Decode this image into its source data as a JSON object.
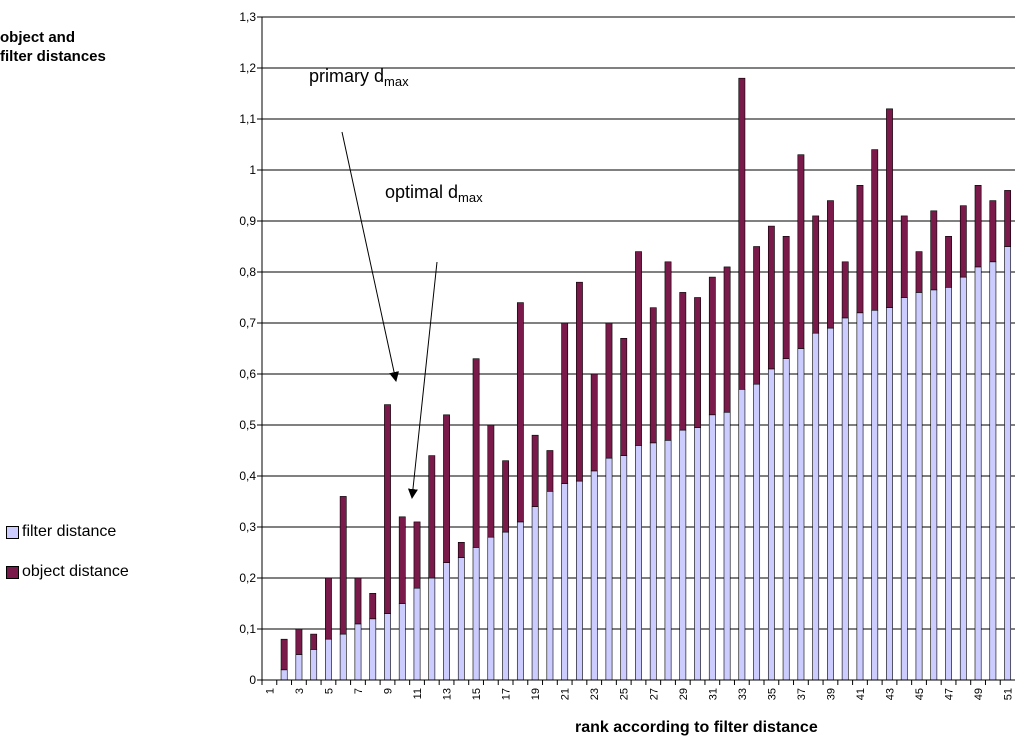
{
  "chart_data": {
    "type": "bar",
    "stacked": true,
    "ylabel_line1": "object and",
    "ylabel_line2": "filter distances",
    "xlabel": "rank according to filter distance",
    "ylim": [
      0,
      1.3
    ],
    "y_ticks": [
      "0",
      "0,1",
      "0,2",
      "0,3",
      "0,4",
      "0,5",
      "0,6",
      "0,7",
      "0,8",
      "0,9",
      "1",
      "1,1",
      "1,2",
      "1,3"
    ],
    "grid": "horizontal",
    "legend_position": "left",
    "x_tick_labels": [
      "1",
      "3",
      "5",
      "7",
      "9",
      "11",
      "13",
      "15",
      "17",
      "19",
      "21",
      "23",
      "25",
      "27",
      "29",
      "31",
      "33",
      "35",
      "37",
      "39",
      "41",
      "43",
      "45",
      "47",
      "49",
      "51"
    ],
    "categories": [
      1,
      2,
      3,
      4,
      5,
      6,
      7,
      8,
      9,
      10,
      11,
      12,
      13,
      14,
      15,
      16,
      17,
      18,
      19,
      20,
      21,
      22,
      23,
      24,
      25,
      26,
      27,
      28,
      29,
      30,
      31,
      32,
      33,
      34,
      35,
      36,
      37,
      38,
      39,
      40,
      41,
      42,
      43,
      44,
      45,
      46,
      47,
      48,
      49,
      50,
      51
    ],
    "series": [
      {
        "name": "filter distance",
        "color": "#ccccff",
        "values": [
          0,
          0.02,
          0.05,
          0.06,
          0.08,
          0.09,
          0.11,
          0.12,
          0.13,
          0.15,
          0.18,
          0.2,
          0.23,
          0.24,
          0.26,
          0.28,
          0.29,
          0.31,
          0.34,
          0.37,
          0.385,
          0.39,
          0.41,
          0.435,
          0.44,
          0.46,
          0.465,
          0.47,
          0.49,
          0.495,
          0.52,
          0.525,
          0.57,
          0.58,
          0.61,
          0.63,
          0.65,
          0.68,
          0.69,
          0.71,
          0.72,
          0.725,
          0.73,
          0.75,
          0.76,
          0.765,
          0.77,
          0.79,
          0.81,
          0.82,
          0.85
        ]
      },
      {
        "name": "object distance",
        "color": "#7a1a4a",
        "values": [
          0,
          0.06,
          0.05,
          0.03,
          0.12,
          0.27,
          0.09,
          0.05,
          0.41,
          0.17,
          0.13,
          0.24,
          0.29,
          0.03,
          0.37,
          0.22,
          0.14,
          0.43,
          0.14,
          0.08,
          0.315,
          0.39,
          0.19,
          0.265,
          0.23,
          0.38,
          0.265,
          0.35,
          0.27,
          0.255,
          0.27,
          0.285,
          0.61,
          0.27,
          0.28,
          0.24,
          0.38,
          0.23,
          0.25,
          0.11,
          0.25,
          0.315,
          0.39,
          0.16,
          0.08,
          0.155,
          0.1,
          0.14,
          0.16,
          0.12,
          0.11
        ]
      }
    ],
    "annotations": [
      {
        "text": "primary d",
        "sub": "max",
        "arrow_target_x": 9.5,
        "arrow_target_y": 0.6
      },
      {
        "text": "optimal d",
        "sub": "max",
        "arrow_target_x": 10.5,
        "arrow_target_y": 0.35
      }
    ]
  }
}
